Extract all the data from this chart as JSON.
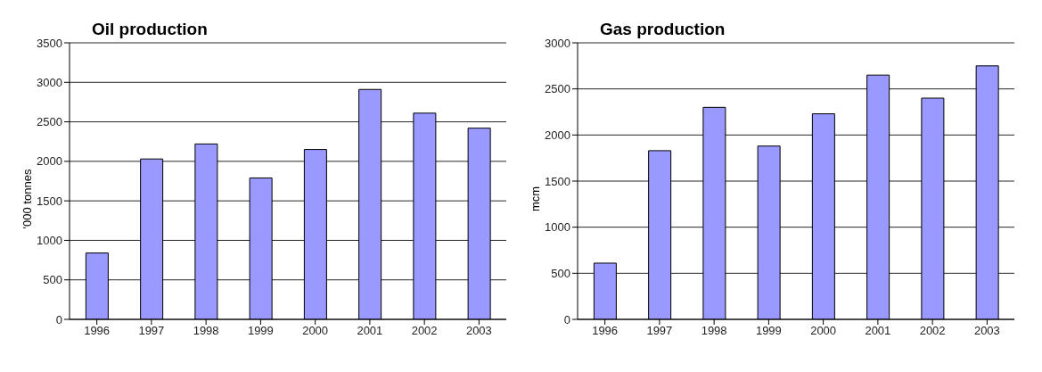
{
  "chart_data": [
    {
      "type": "bar",
      "title": "Oil production",
      "ylabel": "'000 tonnes",
      "categories": [
        "1996",
        "1997",
        "1998",
        "1999",
        "2000",
        "2001",
        "2002",
        "2003"
      ],
      "values": [
        840,
        2030,
        2220,
        1790,
        2150,
        2910,
        2610,
        2420
      ],
      "color": "#9999ff",
      "ylim": [
        0,
        3500
      ],
      "yticks": [
        0,
        500,
        1000,
        1500,
        2000,
        2500,
        3000,
        3500
      ],
      "grid": "y"
    },
    {
      "type": "bar",
      "title": "Gas production",
      "ylabel": "mcm",
      "categories": [
        "1996",
        "1997",
        "1998",
        "1999",
        "2000",
        "2001",
        "2002",
        "2003"
      ],
      "values": [
        610,
        1830,
        2300,
        1880,
        2230,
        2650,
        2400,
        2750
      ],
      "color": "#9999ff",
      "ylim": [
        0,
        3000
      ],
      "yticks": [
        0,
        500,
        1000,
        1500,
        2000,
        2500,
        3000
      ],
      "grid": "y"
    }
  ]
}
